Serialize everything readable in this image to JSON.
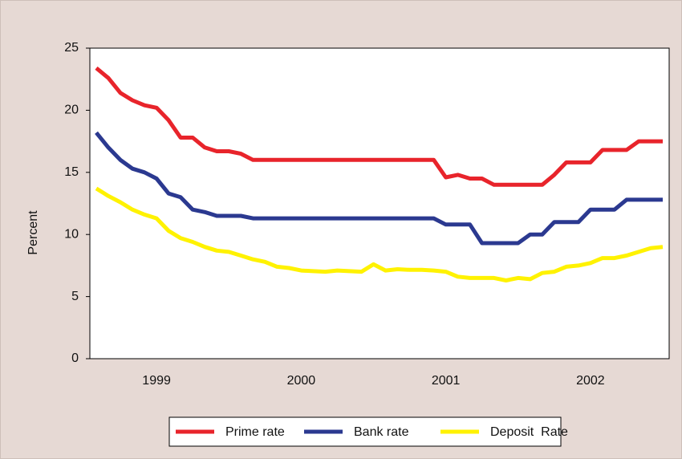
{
  "chart_data": {
    "type": "line",
    "y_label": "Percent",
    "categories": [
      null,
      null,
      null,
      null,
      null,
      "1999",
      null,
      null,
      null,
      null,
      null,
      null,
      null,
      null,
      null,
      null,
      null,
      "2000",
      null,
      null,
      null,
      null,
      null,
      null,
      null,
      null,
      null,
      null,
      null,
      "2001",
      null,
      null,
      null,
      null,
      null,
      null,
      null,
      null,
      null,
      null,
      null,
      "2002",
      null,
      null,
      null,
      null,
      null,
      null
    ],
    "series": [
      {
        "name": "Prime rate",
        "color": "#e8242b",
        "values": [
          23.4,
          22.6,
          21.4,
          20.8,
          20.4,
          20.2,
          19.2,
          17.8,
          17.8,
          17.0,
          16.7,
          16.7,
          16.5,
          16.0,
          16.0,
          16.0,
          16.0,
          16.0,
          16.0,
          16.0,
          16.0,
          16.0,
          16.0,
          16.0,
          16.0,
          16.0,
          16.0,
          16.0,
          16.0,
          14.6,
          14.8,
          14.5,
          14.5,
          14.0,
          14.0,
          14.0,
          14.0,
          14.0,
          14.8,
          15.8,
          15.8,
          15.8,
          16.8,
          16.8,
          16.8,
          17.5,
          17.5,
          17.5
        ]
      },
      {
        "name": "Bank rate",
        "color": "#2b3990",
        "values": [
          18.2,
          17.0,
          16.0,
          15.3,
          15.0,
          14.5,
          13.3,
          13.0,
          12.0,
          11.8,
          11.5,
          11.5,
          11.5,
          11.3,
          11.3,
          11.3,
          11.3,
          11.3,
          11.3,
          11.3,
          11.3,
          11.3,
          11.3,
          11.3,
          11.3,
          11.3,
          11.3,
          11.3,
          11.3,
          10.8,
          10.8,
          10.8,
          9.3,
          9.3,
          9.3,
          9.3,
          10.0,
          10.0,
          11.0,
          11.0,
          11.0,
          12.0,
          12.0,
          12.0,
          12.8,
          12.8,
          12.8,
          12.8
        ]
      },
      {
        "name": "Deposit  Rate",
        "color": "#fff200",
        "values": [
          13.7,
          13.1,
          12.6,
          12.0,
          11.6,
          11.3,
          10.3,
          9.7,
          9.4,
          9.0,
          8.7,
          8.6,
          8.3,
          8.0,
          7.8,
          7.4,
          7.3,
          7.1,
          7.05,
          7.0,
          7.1,
          7.05,
          7.0,
          7.6,
          7.1,
          7.2,
          7.15,
          7.15,
          7.1,
          7.0,
          6.6,
          6.5,
          6.5,
          6.5,
          6.3,
          6.5,
          6.4,
          6.9,
          7.0,
          7.4,
          7.5,
          7.7,
          8.1,
          8.1,
          8.3,
          8.6,
          8.9,
          9.0
        ]
      }
    ],
    "ylim": [
      0,
      25
    ],
    "yticks": [
      0,
      5,
      10,
      15,
      20,
      25
    ],
    "grid": false,
    "legend": "bottom"
  }
}
